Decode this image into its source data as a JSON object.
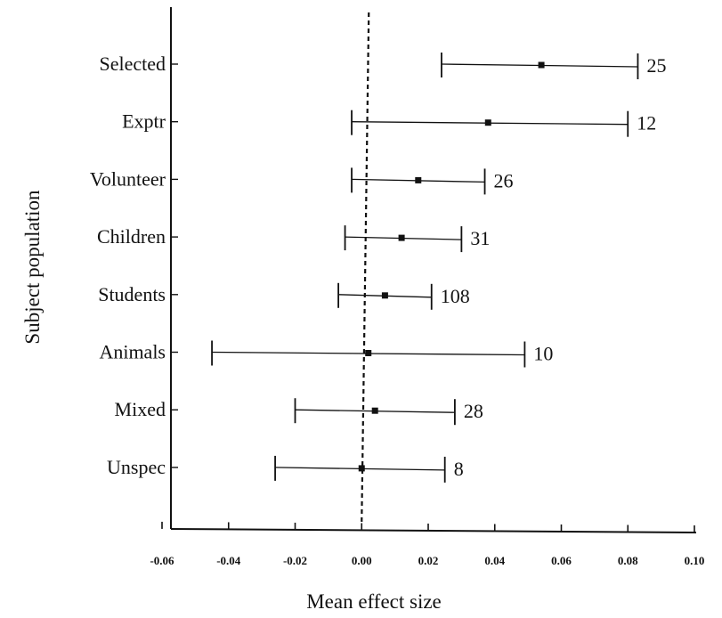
{
  "chart_data": {
    "type": "forest",
    "xlabel": "Mean effect size",
    "ylabel": "Subject population",
    "xlim": [
      -0.06,
      0.1
    ],
    "x_ticks": [
      "-0.06",
      "-0.04",
      "-0.02",
      "0.00",
      "0.02",
      "0.04",
      "0.06",
      "0.08",
      "0.10"
    ],
    "x_tick_values": [
      -0.06,
      -0.04,
      -0.02,
      0.0,
      0.02,
      0.04,
      0.06,
      0.08,
      0.1
    ],
    "reference_line": 0.0,
    "rows": [
      {
        "label": "Selected",
        "mean": 0.054,
        "lower": 0.024,
        "upper": 0.083,
        "n": "25"
      },
      {
        "label": "Exptr",
        "mean": 0.038,
        "lower": -0.003,
        "upper": 0.08,
        "n": "12"
      },
      {
        "label": "Volunteer",
        "mean": 0.017,
        "lower": -0.003,
        "upper": 0.037,
        "n": "26"
      },
      {
        "label": "Children",
        "mean": 0.012,
        "lower": -0.005,
        "upper": 0.03,
        "n": "31"
      },
      {
        "label": "Students",
        "mean": 0.007,
        "lower": -0.007,
        "upper": 0.021,
        "n": "108"
      },
      {
        "label": "Animals",
        "mean": 0.002,
        "lower": -0.045,
        "upper": 0.049,
        "n": "10"
      },
      {
        "label": "Mixed",
        "mean": 0.004,
        "lower": -0.02,
        "upper": 0.028,
        "n": "28"
      },
      {
        "label": "Unspec",
        "mean": 0.0,
        "lower": -0.026,
        "upper": 0.025,
        "n": "8"
      }
    ]
  }
}
